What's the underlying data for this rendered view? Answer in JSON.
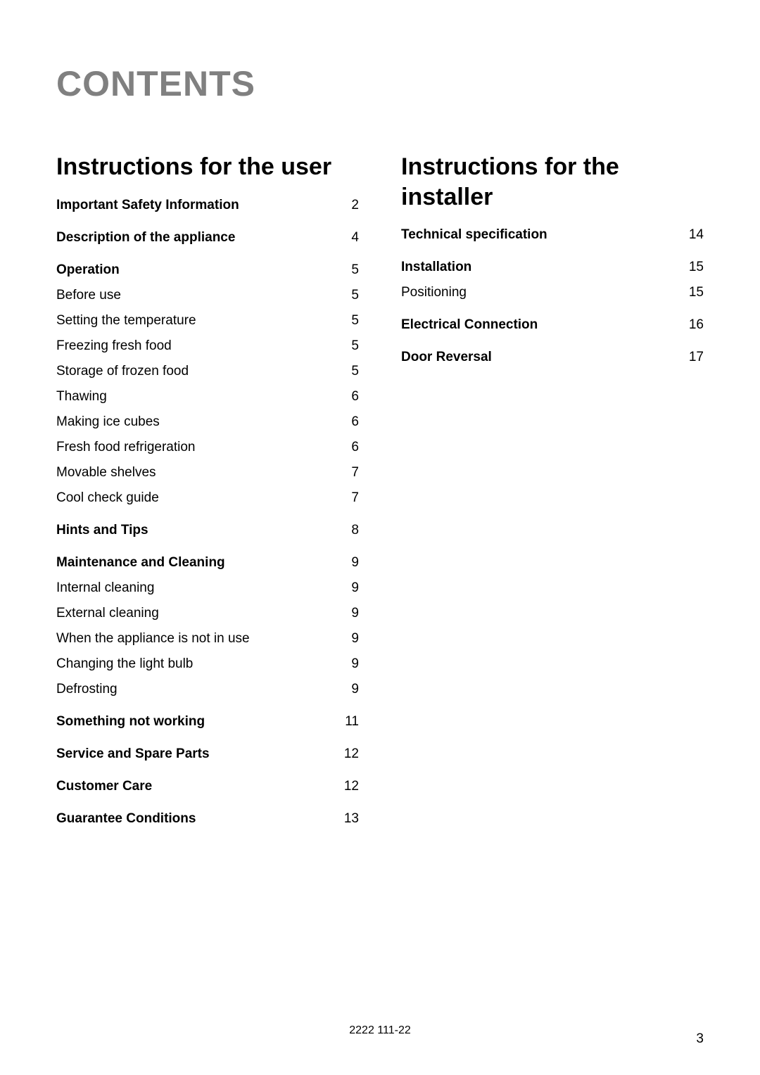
{
  "page": {
    "background_color": "#ffffff",
    "text_color": "#000000",
    "title_color": "#808080",
    "font_family": "Helvetica, Arial, sans-serif",
    "title_fontsize_pt": 38,
    "section_heading_fontsize_pt": 26,
    "body_fontsize_pt": 14
  },
  "title": "CONTENTS",
  "left": {
    "heading": "Instructions for the user",
    "entries": [
      {
        "label": "Important Safety Information",
        "page": "2",
        "bold": true
      },
      {
        "label": "Description of the appliance",
        "page": "4",
        "bold": true,
        "gap": true
      },
      {
        "label": "Operation",
        "page": "5",
        "bold": true,
        "gap": true
      },
      {
        "label": "Before use",
        "page": "5",
        "bold": false
      },
      {
        "label": "Setting the temperature",
        "page": "5",
        "bold": false
      },
      {
        "label": "Freezing fresh food",
        "page": "5",
        "bold": false
      },
      {
        "label": "Storage of frozen food",
        "page": "5",
        "bold": false
      },
      {
        "label": "Thawing",
        "page": "6",
        "bold": false
      },
      {
        "label": "Making ice cubes",
        "page": "6",
        "bold": false
      },
      {
        "label": "Fresh food refrigeration",
        "page": "6",
        "bold": false
      },
      {
        "label": "Movable shelves",
        "page": "7",
        "bold": false
      },
      {
        "label": "Cool check guide",
        "page": "7",
        "bold": false
      },
      {
        "label": "Hints and Tips",
        "page": "8",
        "bold": true,
        "gap": true
      },
      {
        "label": "Maintenance and Cleaning",
        "page": "9",
        "bold": true,
        "gap": true
      },
      {
        "label": "Internal cleaning",
        "page": "9",
        "bold": false
      },
      {
        "label": "External cleaning",
        "page": "9",
        "bold": false
      },
      {
        "label": "When the appliance is not in use",
        "page": "9",
        "bold": false
      },
      {
        "label": "Changing the light bulb",
        "page": "9",
        "bold": false
      },
      {
        "label": "Defrosting",
        "page": "9",
        "bold": false
      },
      {
        "label": "Something not working",
        "page": "11",
        "bold": true,
        "gap": true
      },
      {
        "label": "Service and Spare Parts",
        "page": "12",
        "bold": true,
        "gap": true
      },
      {
        "label": "Customer Care",
        "page": "12",
        "bold": true,
        "gap": true
      },
      {
        "label": "Guarantee Conditions",
        "page": "13",
        "bold": true,
        "gap": true
      }
    ]
  },
  "right": {
    "heading": "Instructions for the installer",
    "entries": [
      {
        "label": "Technical specification",
        "page": "14",
        "bold": true
      },
      {
        "label": "Installation",
        "page": "15",
        "bold": true,
        "gap": true
      },
      {
        "label": "Positioning",
        "page": "15",
        "bold": false
      },
      {
        "label": "Electrical Connection",
        "page": "16",
        "bold": true,
        "gap": true
      },
      {
        "label": "Door Reversal",
        "page": "17",
        "bold": true,
        "gap": true
      }
    ]
  },
  "footer": {
    "center": "2222 111-22",
    "page_number": "3"
  }
}
